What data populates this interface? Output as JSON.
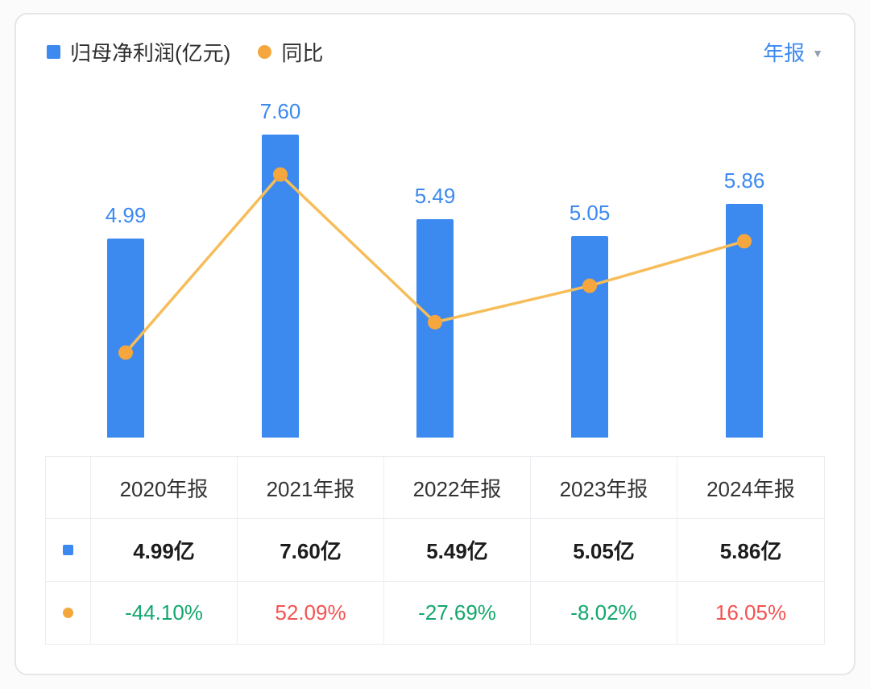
{
  "legend": {
    "bar_label": "归母净利润(亿元)",
    "line_label": "同比"
  },
  "period_selector": {
    "label": "年报",
    "caret": "▼"
  },
  "colors": {
    "bar": "#3c89f0",
    "bar_value_label": "#3c89f0",
    "line": "#f6bd59",
    "dot": "#f5a73e",
    "period_text": "#3c89f0",
    "up": "#f35352",
    "down": "#13a76d"
  },
  "chart_data": {
    "type": "bar+line",
    "categories": [
      "2020年报",
      "2021年报",
      "2022年报",
      "2023年报",
      "2024年报"
    ],
    "series": [
      {
        "name": "归母净利润(亿元)",
        "type": "bar",
        "unit": "亿元",
        "values": [
          4.99,
          7.6,
          5.49,
          5.05,
          5.86
        ],
        "labels": [
          "4.99",
          "7.60",
          "5.49",
          "5.05",
          "5.86"
        ]
      },
      {
        "name": "同比",
        "type": "line",
        "unit": "%",
        "values": [
          -44.1,
          52.09,
          -27.69,
          -8.02,
          16.05
        ]
      }
    ],
    "bar_axis": {
      "min": 0,
      "max": 8.6
    },
    "line_axis": {
      "min": -90,
      "max": 95
    },
    "grid": false,
    "legend_position": "top-left"
  },
  "table": {
    "header": [
      "2020年报",
      "2021年报",
      "2022年报",
      "2023年报",
      "2024年报"
    ],
    "rows": [
      {
        "icon": "bar-series-swatch",
        "cells": [
          {
            "text": "4.99亿"
          },
          {
            "text": "7.60亿"
          },
          {
            "text": "5.49亿"
          },
          {
            "text": "5.05亿"
          },
          {
            "text": "5.86亿"
          }
        ]
      },
      {
        "icon": "line-series-swatch",
        "cells": [
          {
            "text": "-44.10%",
            "color": "#13a76d"
          },
          {
            "text": "52.09%",
            "color": "#f35352"
          },
          {
            "text": "-27.69%",
            "color": "#13a76d"
          },
          {
            "text": "-8.02%",
            "color": "#13a76d"
          },
          {
            "text": "16.05%",
            "color": "#f35352"
          }
        ]
      }
    ]
  }
}
